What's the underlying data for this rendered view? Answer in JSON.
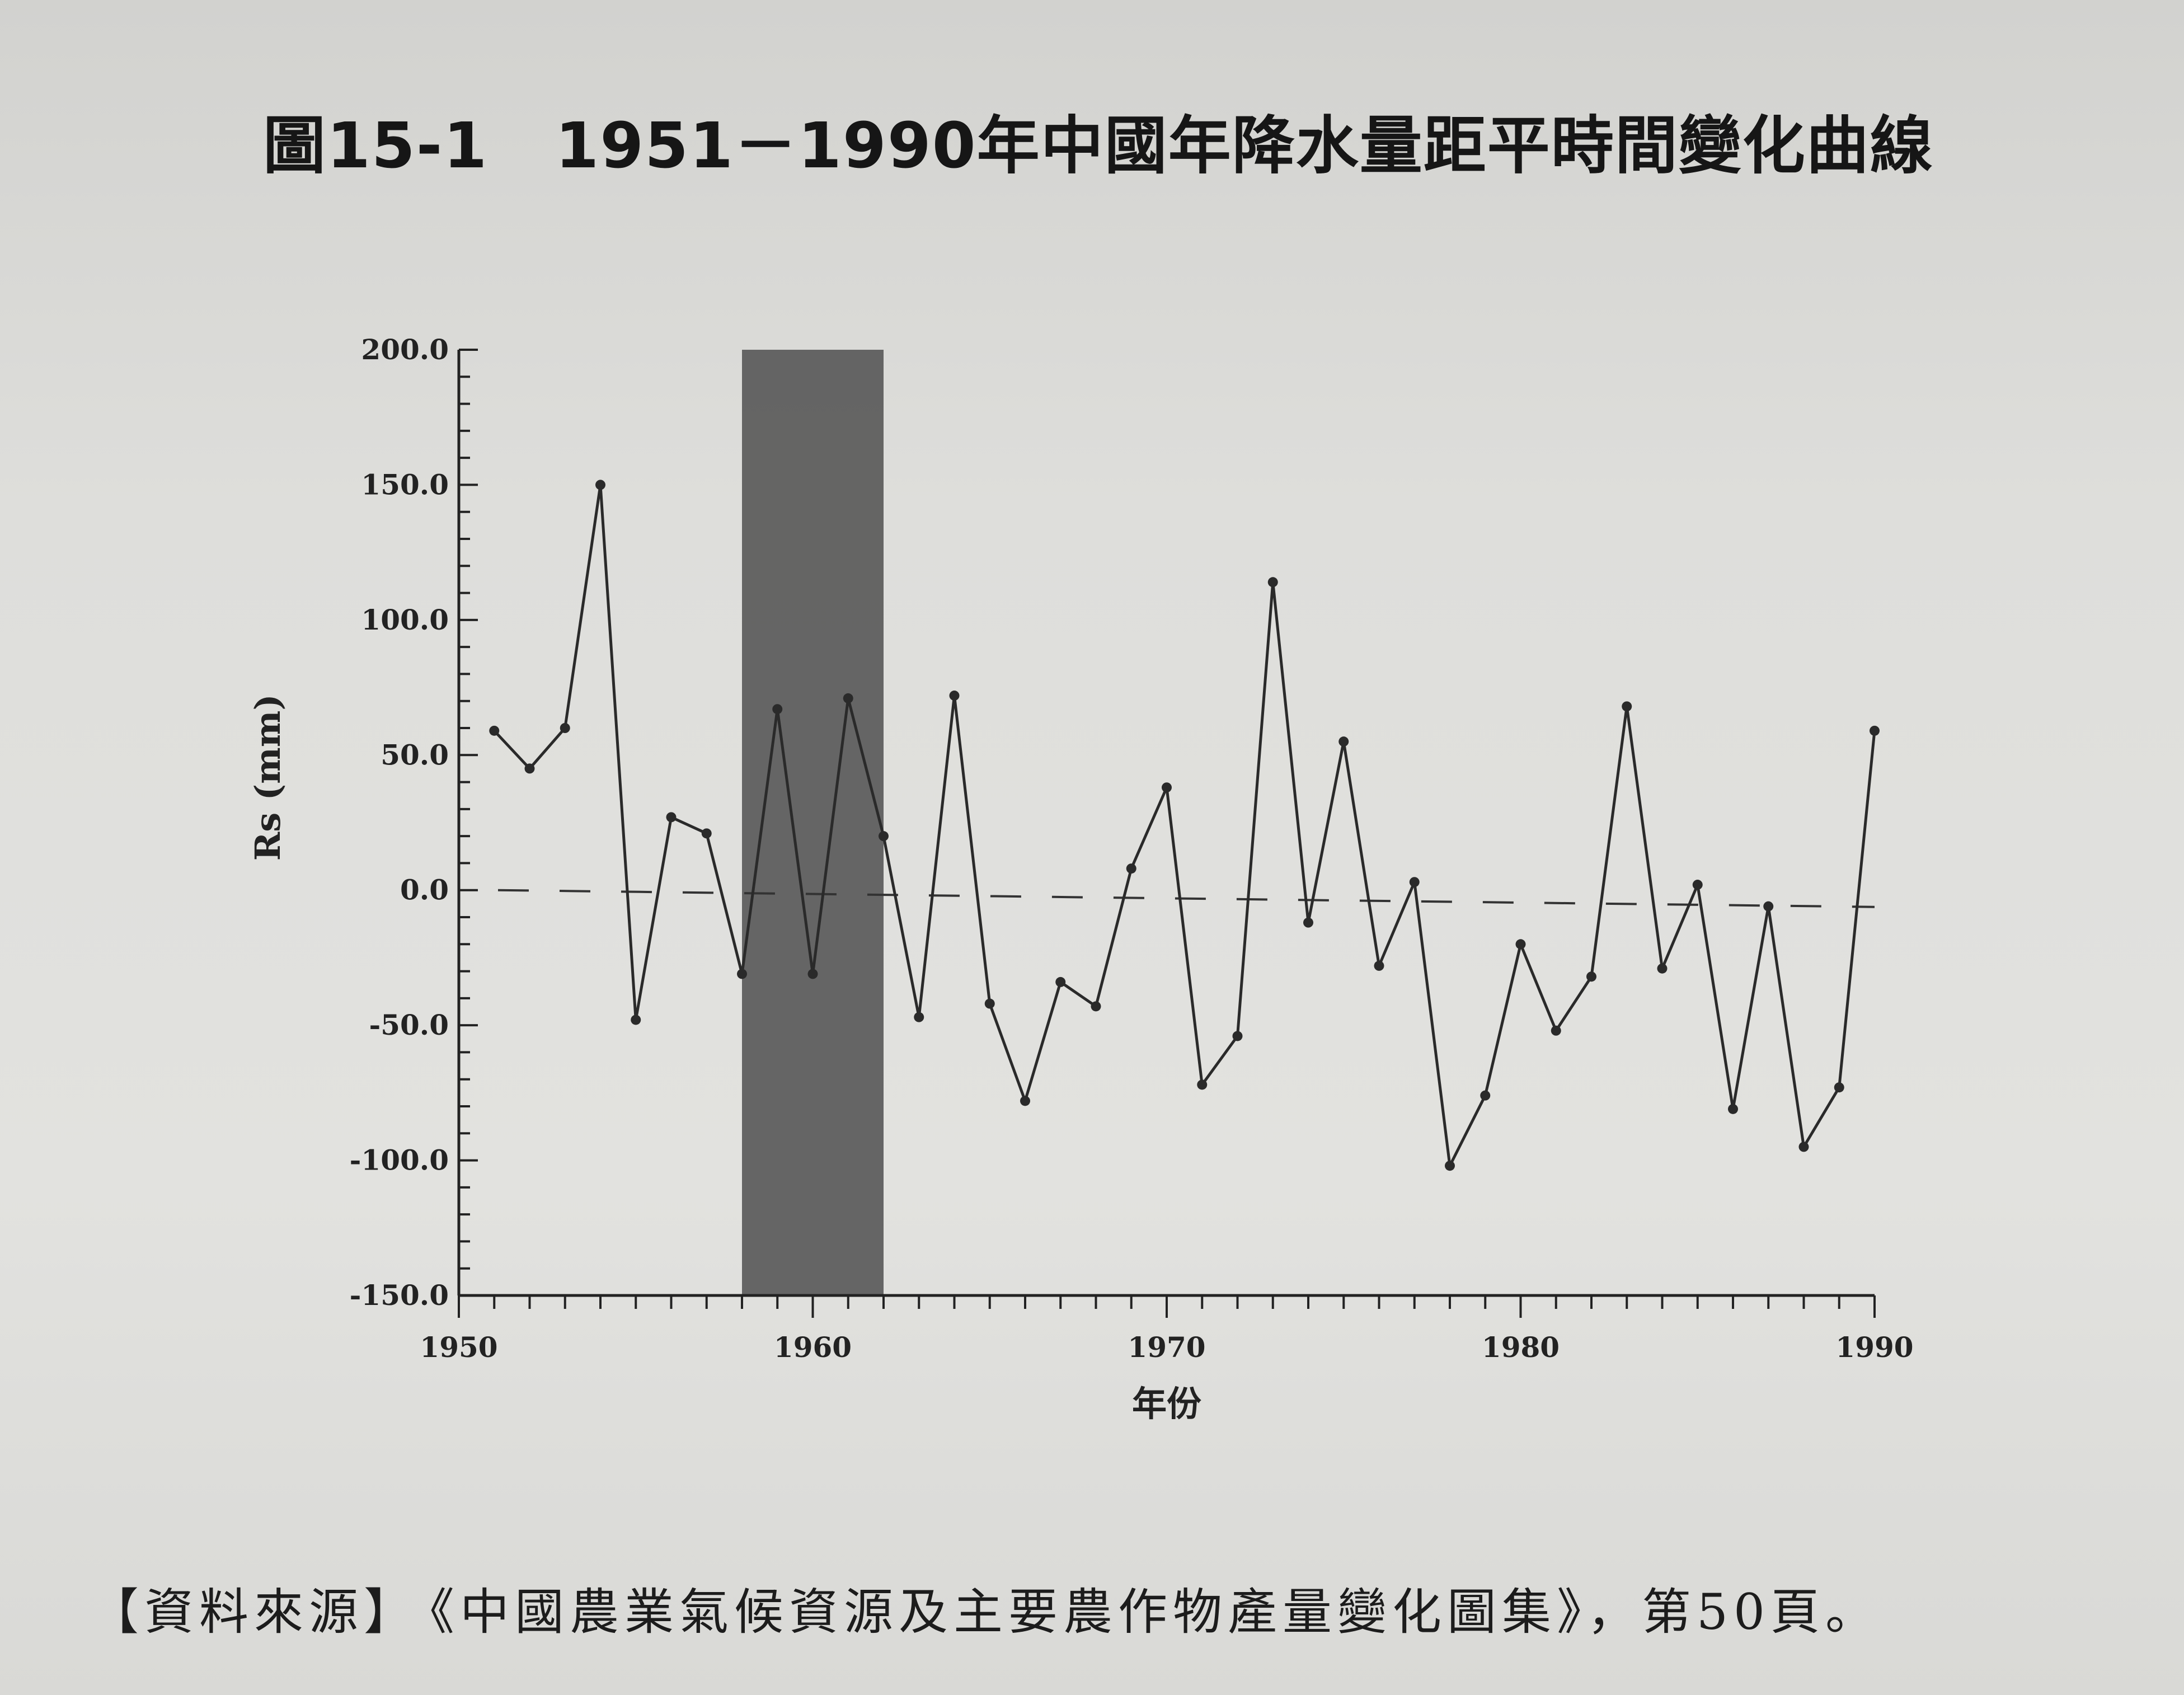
{
  "figure": {
    "number": "圖15-1",
    "title": "1951－1990年中國年降水量距平時間變化曲線"
  },
  "source": {
    "label": "【資料來源】",
    "text": "《中國農業氣候資源及主要農作物產量變化圖集》，第50頁。"
  },
  "chart_data": {
    "type": "line",
    "xlabel": "年份",
    "ylabel": "Rs (mm)",
    "xlim": [
      1950,
      1990
    ],
    "ylim": [
      -150,
      200
    ],
    "x_ticks": [
      1950,
      1960,
      1970,
      1980,
      1990
    ],
    "y_ticks": [
      "200.0",
      "150.0",
      "100.0",
      "50.0",
      "0.0",
      "-50.0",
      "-100.0",
      "-150.0"
    ],
    "y_tick_values": [
      200,
      150,
      100,
      50,
      0,
      -50,
      -100,
      -150
    ],
    "reference_line": {
      "y": 0,
      "style": "dashed"
    },
    "shaded_band": {
      "x_from": 1958,
      "x_to": 1962,
      "color": "#5a5a5a"
    },
    "grid": false,
    "series": [
      {
        "x": [
          1951,
          1952,
          1953,
          1954,
          1955,
          1956,
          1957,
          1958,
          1959,
          1960,
          1961,
          1962,
          1963,
          1964,
          1965,
          1966,
          1967,
          1968,
          1969,
          1970,
          1971,
          1972,
          1973,
          1974,
          1975,
          1976,
          1977,
          1978,
          1979,
          1980,
          1981,
          1982,
          1983,
          1984,
          1985,
          1986,
          1987,
          1988,
          1989,
          1990
        ],
        "values": [
          59,
          45,
          60,
          150,
          -48,
          27,
          21,
          -31,
          67,
          -31,
          71,
          20,
          -47,
          72,
          -42,
          -78,
          -34,
          -43,
          8,
          38,
          -72,
          -54,
          114,
          -12,
          55,
          -28,
          3,
          -102,
          -76,
          -20,
          -52,
          -32,
          68,
          -29,
          2,
          -81,
          -6,
          -95,
          -73,
          59
        ]
      }
    ],
    "line_color": "#2a2a2a"
  }
}
